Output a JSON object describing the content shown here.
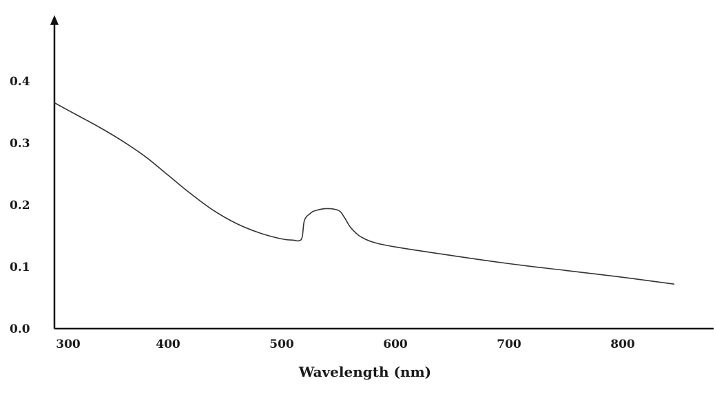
{
  "chart_data": {
    "type": "line",
    "title": "",
    "xlabel": "Wavelength (nm)",
    "ylabel": "",
    "xlim": [
      300,
      880
    ],
    "ylim": [
      0,
      0.5
    ],
    "grid": false,
    "legend": "none",
    "xticks": [
      300,
      400,
      500,
      600,
      700,
      800
    ],
    "xtick_labels": [
      "300",
      "400",
      "500",
      "600",
      "700",
      "800"
    ],
    "yticks": [
      0.0,
      0.1,
      0.2,
      0.3,
      0.4
    ],
    "ytick_labels": [
      "0.0",
      "0.1",
      "0.2",
      "0.3",
      "0.4"
    ],
    "series": [
      {
        "color": "#333333",
        "x": [
          300,
          320,
          340,
          360,
          380,
          400,
          420,
          440,
          460,
          480,
          500,
          510,
          515,
          518,
          520,
          525,
          530,
          540,
          550,
          555,
          560,
          565,
          570,
          580,
          600,
          650,
          700,
          750,
          800,
          845
        ],
        "y": [
          0.365,
          0.345,
          0.325,
          0.303,
          0.278,
          0.248,
          0.218,
          0.191,
          0.17,
          0.155,
          0.145,
          0.143,
          0.142,
          0.148,
          0.175,
          0.186,
          0.191,
          0.194,
          0.191,
          0.18,
          0.165,
          0.155,
          0.148,
          0.14,
          0.132,
          0.118,
          0.105,
          0.094,
          0.083,
          0.072
        ]
      }
    ]
  }
}
